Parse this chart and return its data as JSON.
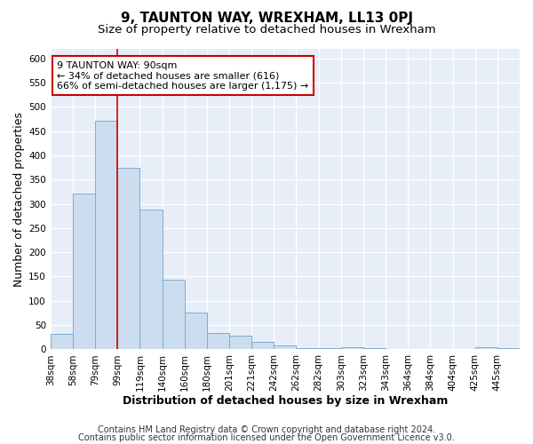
{
  "title": "9, TAUNTON WAY, WREXHAM, LL13 0PJ",
  "subtitle": "Size of property relative to detached houses in Wrexham",
  "xlabel": "Distribution of detached houses by size in Wrexham",
  "ylabel": "Number of detached properties",
  "bar_labels": [
    "38sqm",
    "58sqm",
    "79sqm",
    "99sqm",
    "119sqm",
    "140sqm",
    "160sqm",
    "180sqm",
    "201sqm",
    "221sqm",
    "242sqm",
    "262sqm",
    "282sqm",
    "303sqm",
    "323sqm",
    "343sqm",
    "364sqm",
    "384sqm",
    "404sqm",
    "425sqm",
    "445sqm"
  ],
  "bar_values": [
    32,
    322,
    472,
    375,
    288,
    143,
    76,
    33,
    29,
    15,
    8,
    3,
    2,
    5,
    2,
    0,
    0,
    0,
    0,
    5,
    2
  ],
  "bar_color": "#cdddf0",
  "bar_edge_color": "#7aadd4",
  "vline_x": 3,
  "vline_color": "#cc0000",
  "annotation_text": "9 TAUNTON WAY: 90sqm\n← 34% of detached houses are smaller (616)\n66% of semi-detached houses are larger (1,175) →",
  "annotation_box_color": "#ffffff",
  "annotation_box_edge": "#cc0000",
  "ylim": [
    0,
    620
  ],
  "yticks": [
    0,
    50,
    100,
    150,
    200,
    250,
    300,
    350,
    400,
    450,
    500,
    550,
    600
  ],
  "footer_line1": "Contains HM Land Registry data © Crown copyright and database right 2024.",
  "footer_line2": "Contains public sector information licensed under the Open Government Licence v3.0.",
  "bg_color": "#ffffff",
  "plot_bg_color": "#e8eef8",
  "title_fontsize": 11,
  "subtitle_fontsize": 9.5,
  "axis_label_fontsize": 9,
  "tick_fontsize": 7.5,
  "footer_fontsize": 7,
  "annotation_fontsize": 8
}
